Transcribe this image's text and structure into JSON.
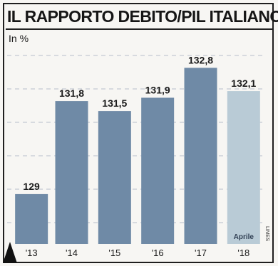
{
  "header": {
    "title": "IL RAPPORTO DEBITO/PIL ITALIANO",
    "unit": "In %"
  },
  "colors": {
    "bar": "#6f8aa6",
    "bar_highlight": "#b9cbd6",
    "grid": "#d7dadf",
    "background": "#f7f6f3",
    "text": "#1a1a1a"
  },
  "chart_data": {
    "type": "bar",
    "categories": [
      "'13",
      "'14",
      "'15",
      "'16",
      "'17",
      "'18"
    ],
    "values": [
      129,
      131.8,
      131.5,
      131.9,
      132.8,
      132.1
    ],
    "value_labels": [
      "129",
      "131,8",
      "131,5",
      "131,9",
      "132,8",
      "132,1"
    ],
    "bar_annotations": [
      "",
      "",
      "",
      "",
      "",
      "Aprile"
    ],
    "highlighted_index": 5,
    "title": "IL RAPPORTO DEBITO/PIL ITALIANO",
    "ylabel": "In %",
    "ylim": [
      127.5,
      133.3
    ],
    "grid": true,
    "axis_break": true
  },
  "credit": "LIMES"
}
